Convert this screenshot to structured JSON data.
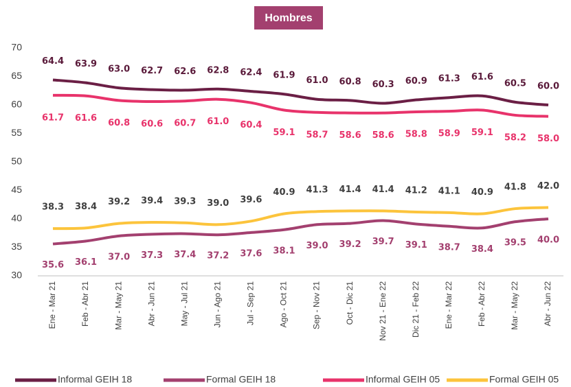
{
  "chart_data": {
    "type": "line",
    "title": "Hombres",
    "categories": [
      "Ene - Mar 21",
      "Feb - Abr 21",
      "Mar - May 21",
      "Abr - Jun 21",
      "May - Jul 21",
      "Jun - Ago 21",
      "Jul - Sep 21",
      "Ago - Oct 21",
      "Sep - Nov 21",
      "Oct - Dic 21",
      "Nov 21 - Ene 22",
      "Dic 21 - Feb 22",
      "Ene - Mar 22",
      "Feb - Abr 22",
      "Mar - May 22",
      "Abr - Jun 22"
    ],
    "series": [
      {
        "name": "Informal GEIH 18",
        "color": "#6b1f45",
        "values": [
          64.4,
          63.9,
          63.0,
          62.7,
          62.6,
          62.8,
          62.4,
          61.9,
          61.0,
          60.8,
          60.3,
          60.9,
          61.3,
          61.6,
          60.5,
          60.0
        ],
        "value_labels": [
          "64.4",
          "63.9",
          "63.0",
          "62.7",
          "62.6",
          "62.8",
          "62.4",
          "61.9",
          "61.0",
          "60.8",
          "60.3",
          "60.9",
          "61.3",
          "61.6",
          "60.5",
          "60.0"
        ]
      },
      {
        "name": "Formal GEIH 18",
        "color": "#a3406f",
        "values": [
          35.6,
          36.1,
          37.0,
          37.3,
          37.4,
          37.2,
          37.6,
          38.1,
          39.0,
          39.2,
          39.7,
          39.1,
          38.7,
          38.4,
          39.5,
          40.0
        ],
        "value_labels": [
          "35.6",
          "36.1",
          "37.0",
          "37.3",
          "37.4",
          "37.2",
          "37.6",
          "38.1",
          "39.0",
          "39.2",
          "39.7",
          "39.1",
          "38.7",
          "38.4",
          "39.5",
          "40.0"
        ]
      },
      {
        "name": "Informal GEIH 05",
        "color": "#e8336b",
        "values": [
          61.7,
          61.6,
          60.8,
          60.6,
          60.7,
          61.0,
          60.4,
          59.1,
          58.7,
          58.6,
          58.6,
          58.8,
          58.9,
          59.1,
          58.2,
          58.0
        ],
        "value_labels": [
          "61.7",
          "61.6",
          "60.8",
          "60.6",
          "60.7",
          "61.0",
          "60.4",
          "59.1",
          "58.7",
          "58.6",
          "58.6",
          "58.8",
          "58.9",
          "59.1",
          "58.2",
          "58.0"
        ]
      },
      {
        "name": "Formal GEIH 05",
        "color": "#fcc43c",
        "values": [
          38.3,
          38.4,
          39.2,
          39.4,
          39.3,
          39.0,
          39.6,
          40.9,
          41.3,
          41.4,
          41.4,
          41.2,
          41.1,
          40.9,
          41.8,
          42.0
        ],
        "value_labels": [
          "38.3",
          "38.4",
          "39.2",
          "39.4",
          "39.3",
          "39.0",
          "39.6",
          "40.9",
          "41.3",
          "41.4",
          "41.4",
          "41.2",
          "41.1",
          "40.9",
          "41.8",
          "42.0"
        ]
      }
    ],
    "ylim": [
      30,
      70
    ],
    "yticks": [
      30,
      35,
      40,
      45,
      50,
      55,
      60,
      65,
      70
    ],
    "grid": false,
    "legend": "bottom"
  }
}
